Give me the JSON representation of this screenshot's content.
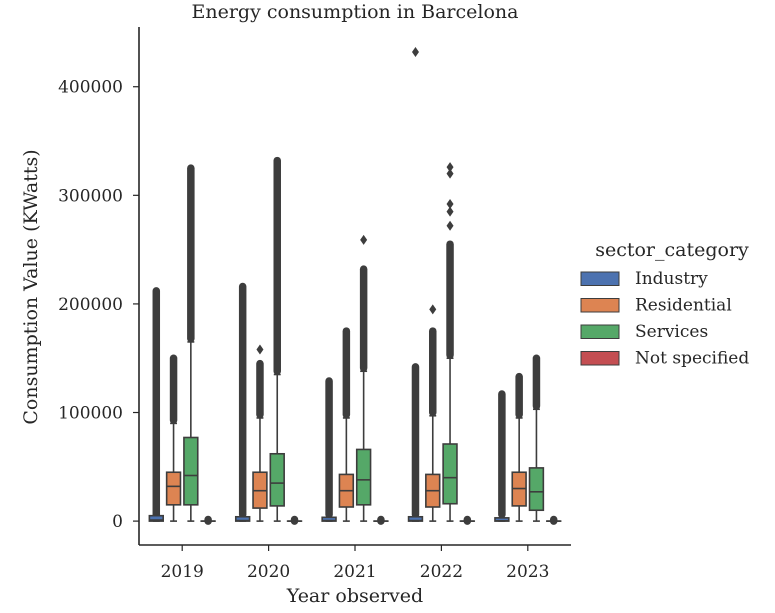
{
  "chart_data": {
    "type": "box",
    "title": "Energy consumption in Barcelona",
    "xlabel": "Year observed",
    "ylabel": "Consumption Value (KWatts)",
    "ylim": [
      -22000,
      455000
    ],
    "yticks": [
      0,
      100000,
      200000,
      300000,
      400000
    ],
    "ytick_labels": [
      "0",
      "100000",
      "200000",
      "300000",
      "400000"
    ],
    "categories": [
      "2019",
      "2020",
      "2021",
      "2022",
      "2023"
    ],
    "grid": false,
    "legend": {
      "title": "sector_category",
      "placement": "right",
      "entries": [
        "Industry",
        "Residential",
        "Services",
        "Not specified"
      ]
    },
    "colors": {
      "Industry": "#4c72b0",
      "Residential": "#dd8452",
      "Services": "#55a868",
      "Not specified": "#c44e52",
      "line": "#3d3d3d"
    },
    "series": [
      {
        "name": "Industry",
        "boxes": [
          {
            "q1": 0,
            "median": 1000,
            "q3": 5000,
            "whisker_low": 0,
            "whisker_high": 5000,
            "outliers_from": 6000,
            "outliers_to": 212000
          },
          {
            "q1": 0,
            "median": 500,
            "q3": 4000,
            "whisker_low": 0,
            "whisker_high": 4000,
            "outliers_from": 6000,
            "outliers_to": 216000
          },
          {
            "q1": 0,
            "median": 500,
            "q3": 3500,
            "whisker_low": 0,
            "whisker_high": 3500,
            "outliers_from": 6000,
            "outliers_to": 129000
          },
          {
            "q1": 0,
            "median": 500,
            "q3": 4000,
            "whisker_low": 0,
            "whisker_high": 4000,
            "outliers_from": 6000,
            "outliers_to": 142000,
            "extra_outliers": [
              432000
            ]
          },
          {
            "q1": 0,
            "median": 300,
            "q3": 3000,
            "whisker_low": 0,
            "whisker_high": 3000,
            "outliers_from": 6000,
            "outliers_to": 117000
          }
        ]
      },
      {
        "name": "Residential",
        "boxes": [
          {
            "q1": 15000,
            "median": 32000,
            "q3": 45000,
            "whisker_low": 0,
            "whisker_high": 90000,
            "outliers_from": 93000,
            "outliers_to": 150000
          },
          {
            "q1": 12000,
            "median": 28000,
            "q3": 45000,
            "whisker_low": 0,
            "whisker_high": 95000,
            "outliers_from": 98000,
            "outliers_to": 145000,
            "extra_outliers": [
              158000
            ]
          },
          {
            "q1": 13000,
            "median": 28000,
            "q3": 43000,
            "whisker_low": 0,
            "whisker_high": 95000,
            "outliers_from": 98000,
            "outliers_to": 175000
          },
          {
            "q1": 13000,
            "median": 28000,
            "q3": 43000,
            "whisker_low": 0,
            "whisker_high": 97000,
            "outliers_from": 100000,
            "outliers_to": 175000,
            "extra_outliers": [
              195000
            ]
          },
          {
            "q1": 14000,
            "median": 30000,
            "q3": 45000,
            "whisker_low": 0,
            "whisker_high": 95000,
            "outliers_from": 98000,
            "outliers_to": 133000
          }
        ]
      },
      {
        "name": "Services",
        "boxes": [
          {
            "q1": 15000,
            "median": 42000,
            "q3": 77000,
            "whisker_low": 0,
            "whisker_high": 165000,
            "outliers_from": 168000,
            "outliers_to": 325000
          },
          {
            "q1": 14000,
            "median": 35000,
            "q3": 62000,
            "whisker_low": 0,
            "whisker_high": 135000,
            "outliers_from": 138000,
            "outliers_to": 332000
          },
          {
            "q1": 15000,
            "median": 38000,
            "q3": 66000,
            "whisker_low": 0,
            "whisker_high": 138000,
            "outliers_from": 141000,
            "outliers_to": 232000,
            "extra_outliers": [
              259000
            ]
          },
          {
            "q1": 16000,
            "median": 40000,
            "q3": 71000,
            "whisker_low": 0,
            "whisker_high": 150000,
            "outliers_from": 153000,
            "outliers_to": 255000,
            "extra_outliers": [
              272000,
              285000,
              292000,
              320000,
              326000
            ]
          },
          {
            "q1": 10000,
            "median": 27000,
            "q3": 49000,
            "whisker_low": 0,
            "whisker_high": 103000,
            "outliers_from": 106000,
            "outliers_to": 150000
          }
        ]
      },
      {
        "name": "Not specified",
        "boxes": [
          {
            "q1": 0,
            "median": 0,
            "q3": 0,
            "whisker_low": 0,
            "whisker_high": 0,
            "outliers_from": 0,
            "outliers_to": 1500
          },
          {
            "q1": 0,
            "median": 0,
            "q3": 0,
            "whisker_low": 0,
            "whisker_high": 0,
            "outliers_from": 0,
            "outliers_to": 1500
          },
          {
            "q1": 0,
            "median": 0,
            "q3": 0,
            "whisker_low": 0,
            "whisker_high": 0,
            "outliers_from": 0,
            "outliers_to": 1500
          },
          {
            "q1": 0,
            "median": 0,
            "q3": 0,
            "whisker_low": 0,
            "whisker_high": 0,
            "outliers_from": 0,
            "outliers_to": 1500
          },
          {
            "q1": 0,
            "median": 0,
            "q3": 0,
            "whisker_low": 0,
            "whisker_high": 0,
            "outliers_from": 0,
            "outliers_to": 1500
          }
        ]
      }
    ]
  }
}
